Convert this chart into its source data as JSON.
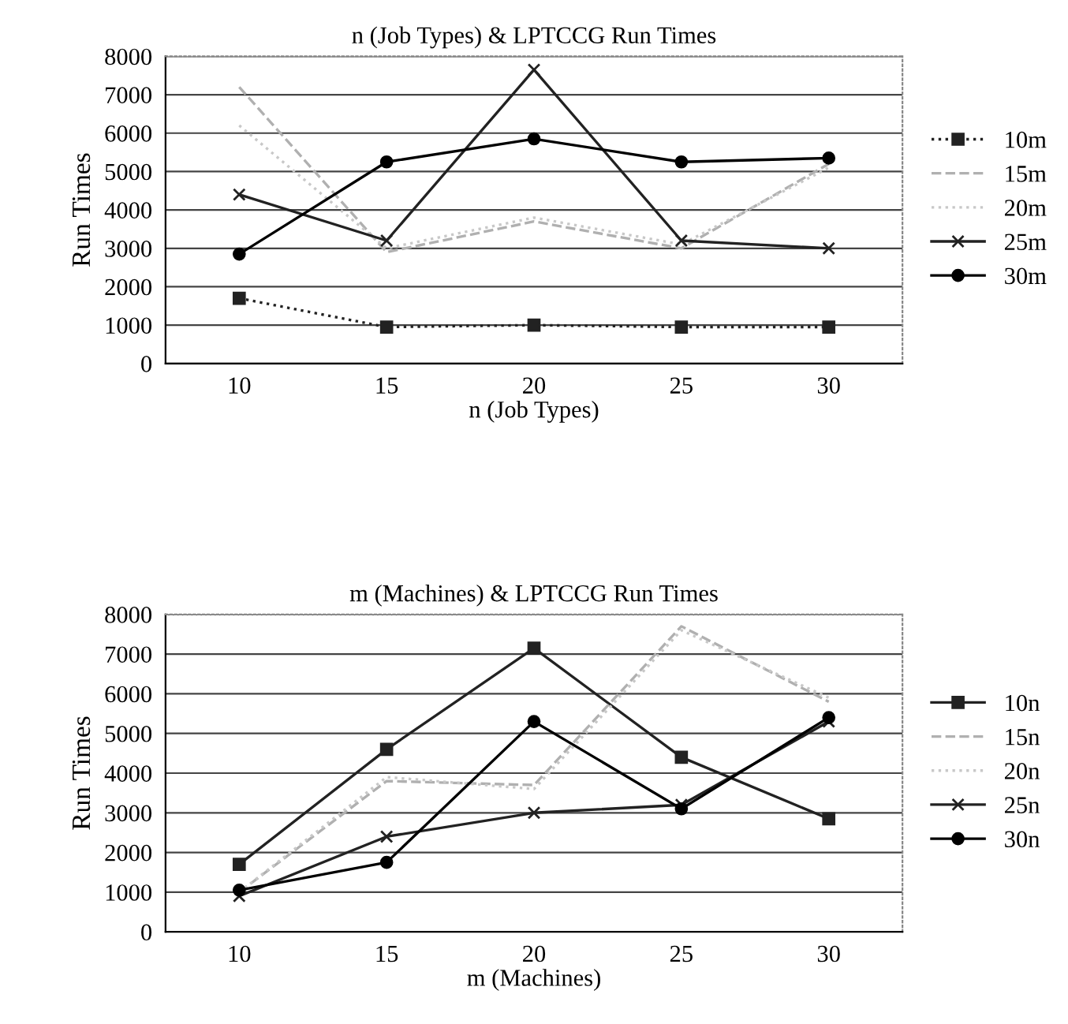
{
  "chart_data": [
    {
      "type": "line",
      "title": "n (Job Types) & LPTCCG Run Times",
      "xlabel": "n (Job Types)",
      "ylabel": "Run Times",
      "categories": [
        "10",
        "15",
        "20",
        "25",
        "30"
      ],
      "ylim": [
        0,
        8000
      ],
      "yticks": [
        0,
        1000,
        2000,
        3000,
        4000,
        5000,
        6000,
        7000,
        8000
      ],
      "grid": "y",
      "legend": "right",
      "series": [
        {
          "name": "10m",
          "color": "#222222",
          "marker": "square",
          "line_style": "dotted",
          "values": [
            1700,
            950,
            1000,
            950,
            950
          ]
        },
        {
          "name": "15m",
          "color": "#b0b0b0",
          "marker": "none",
          "line_style": "dashed",
          "values": [
            7200,
            2900,
            3700,
            3000,
            5200
          ]
        },
        {
          "name": "20m",
          "color": "#c8c8c8",
          "marker": "none",
          "line_style": "dotted",
          "values": [
            6200,
            3000,
            3800,
            3100,
            5100
          ]
        },
        {
          "name": "25m",
          "color": "#222222",
          "marker": "cross",
          "line_style": "solid",
          "values": [
            4400,
            3200,
            7650,
            3200,
            3000
          ]
        },
        {
          "name": "30m",
          "color": "#000000",
          "marker": "circle",
          "line_style": "solid",
          "values": [
            2850,
            5250,
            5850,
            5250,
            5350
          ]
        }
      ]
    },
    {
      "type": "line",
      "title": "m (Machines) & LPTCCG Run Times",
      "xlabel": "m (Machines)",
      "ylabel": "Run Times",
      "categories": [
        "10",
        "15",
        "20",
        "25",
        "30"
      ],
      "ylim": [
        0,
        8000
      ],
      "yticks": [
        0,
        1000,
        2000,
        3000,
        4000,
        5000,
        6000,
        7000,
        8000
      ],
      "grid": "y",
      "legend": "right",
      "series": [
        {
          "name": "10n",
          "color": "#222222",
          "marker": "square",
          "line_style": "solid",
          "values": [
            1700,
            4600,
            7150,
            4400,
            2850
          ]
        },
        {
          "name": "15n",
          "color": "#b0b0b0",
          "marker": "none",
          "line_style": "dashed",
          "values": [
            1000,
            3800,
            3700,
            7700,
            5800
          ]
        },
        {
          "name": "20n",
          "color": "#c8c8c8",
          "marker": "none",
          "line_style": "dotted",
          "values": [
            1000,
            3900,
            3600,
            7600,
            5900
          ]
        },
        {
          "name": "25n",
          "color": "#222222",
          "marker": "cross",
          "line_style": "solid",
          "values": [
            900,
            2400,
            3000,
            3200,
            5300
          ]
        },
        {
          "name": "30n",
          "color": "#000000",
          "marker": "circle",
          "line_style": "solid",
          "values": [
            1050,
            1750,
            5300,
            3100,
            5400
          ]
        }
      ]
    }
  ]
}
